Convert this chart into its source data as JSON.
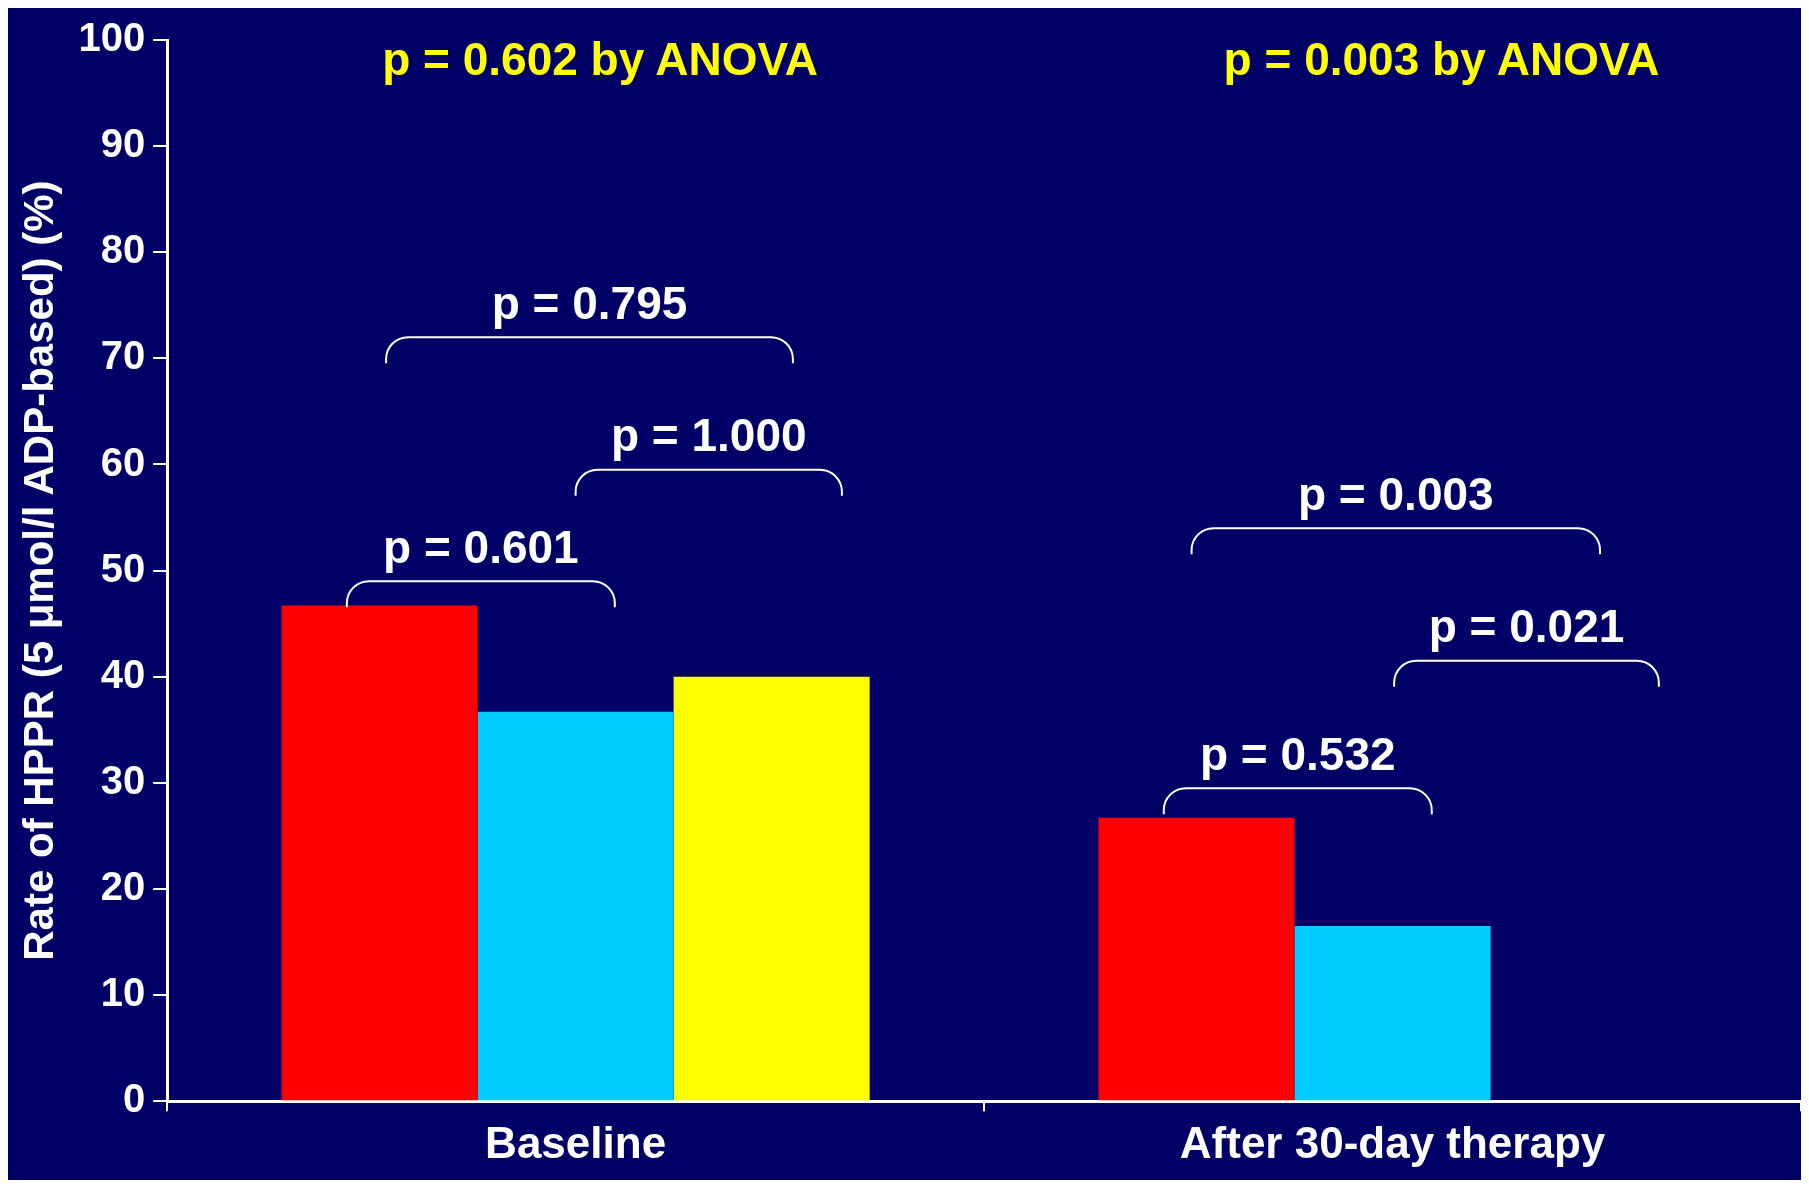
{
  "chart_data": {
    "type": "bar",
    "ylabel": "Rate of HPPR (5 μmol/l ADP-based) (%)",
    "categories": [
      "Baseline",
      "After 30-day therapy"
    ],
    "series": [
      {
        "color": "#ff0000",
        "values": [
          46.7,
          26.7
        ]
      },
      {
        "color": "#00ccff",
        "values": [
          36.7,
          16.5
        ]
      },
      {
        "color": "#ffff00",
        "values": [
          40.0,
          null
        ]
      }
    ],
    "ylim": [
      0,
      100
    ],
    "yticks": [
      0,
      10,
      20,
      30,
      40,
      50,
      60,
      70,
      80,
      90,
      100
    ],
    "grid": false,
    "legend": false,
    "annotations": [
      "p = 0.602 by ANOVA",
      "p = 0.003 by ANOVA",
      "p = 0.795",
      "p = 1.000",
      "p = 0.601",
      "p = 0.003",
      "p = 0.021",
      "p = 0.532"
    ]
  }
}
